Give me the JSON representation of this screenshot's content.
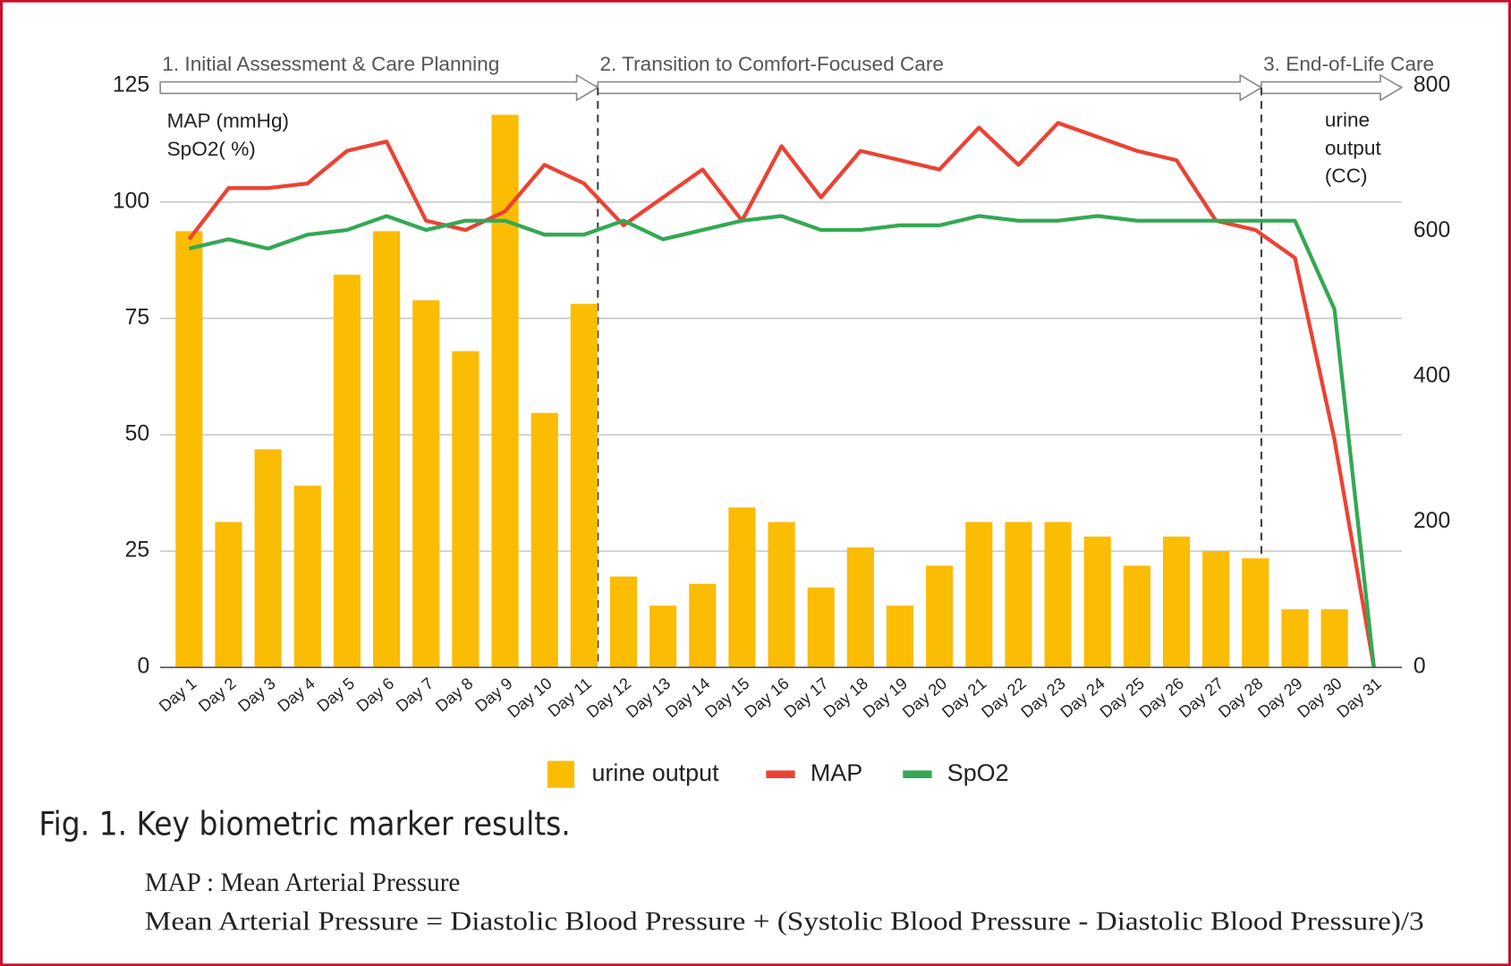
{
  "chart_data": {
    "type": "combo",
    "phases": [
      {
        "label": "1. Initial Assessment & Care Planning",
        "x_start": -0.73,
        "x_end": 10.35
      },
      {
        "label": "2. Transition to Comfort-Focused Care",
        "x_start": 10.35,
        "x_end": 27.15
      },
      {
        "label": "3. End-of-Life Care",
        "x_start": 27.15,
        "x_end": 30.7
      }
    ],
    "y_label": [
      "MAP (mmHg)",
      "SpO2( %)"
    ],
    "y2_label": [
      "urine",
      "output",
      "(CC)"
    ],
    "categories": [
      "Day 1",
      "Day 2",
      "Day 3",
      "Day 4",
      "Day 5",
      "Day 6",
      "Day 7",
      "Day 8",
      "Day 9",
      "Day 10",
      "Day 11",
      "Day 12",
      "Day 13",
      "Day 14",
      "Day 15",
      "Day 16",
      "Day 17",
      "Day 18",
      "Day 19",
      "Day 20",
      "Day 21",
      "Day 22",
      "Day 23",
      "Day 24",
      "Day 25",
      "Day 26",
      "Day 27",
      "Day 28",
      "Day 29",
      "Day 30",
      "Day 31"
    ],
    "series": [
      {
        "name": "urine output",
        "type": "bar",
        "axis": "y2",
        "color": "#fbbc04",
        "values": [
          600,
          200,
          300,
          250,
          540,
          600,
          505,
          435,
          760,
          350,
          500,
          125,
          85,
          115,
          220,
          200,
          110,
          165,
          85,
          140,
          200,
          200,
          200,
          180,
          140,
          180,
          160,
          150,
          80,
          80,
          0
        ]
      },
      {
        "name": "MAP",
        "type": "line",
        "color": "#ea4335",
        "values": [
          92,
          103,
          103,
          104,
          111,
          113,
          96,
          94,
          98,
          108,
          104,
          95,
          101,
          107,
          96,
          112,
          101,
          111,
          109,
          107,
          116,
          108,
          117,
          114,
          111,
          109,
          96,
          94,
          88,
          49,
          0
        ]
      },
      {
        "name": "SpO2",
        "type": "line",
        "color": "#34a853",
        "values": [
          90,
          92,
          90,
          93,
          94,
          97,
          94,
          96,
          96,
          93,
          93,
          96,
          92,
          94,
          96,
          97,
          94,
          94,
          95,
          95,
          97,
          96,
          96,
          97,
          96,
          96,
          96,
          96,
          96,
          77,
          0
        ]
      }
    ],
    "ylim": [
      0,
      125
    ],
    "yticks": [
      0,
      25,
      50,
      75,
      100,
      125
    ],
    "y2lim": [
      0,
      800
    ],
    "y2ticks": [
      0,
      200,
      400,
      600,
      800
    ],
    "grid": true,
    "legend": "bottom"
  },
  "caption": {
    "title": "Fig. 1. Key biometric marker results.",
    "lines": [
      "MAP : Mean Arterial Pressure",
      "Mean Arterial Pressure = Diastolic Blood Pressure + (Systolic Blood Pressure - Diastolic Blood Pressure)/3"
    ]
  }
}
